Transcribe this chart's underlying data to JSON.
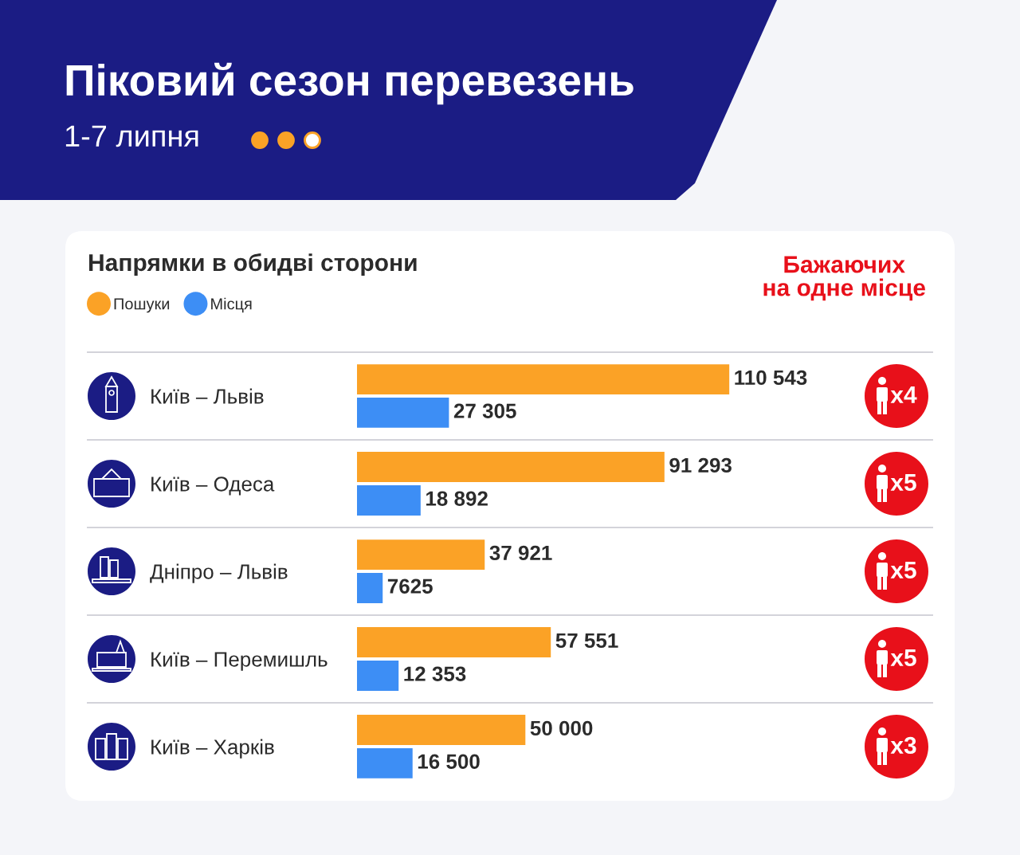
{
  "chart_data": {
    "type": "bar",
    "orientation": "horizontal",
    "title": "Піковий сезон перевезень",
    "subtitle": "1-7 липня",
    "categories": [
      "Київ – Львів",
      "Київ – Одеса",
      "Дніпро – Львів",
      "Київ – Перемишль",
      "Київ – Харків"
    ],
    "series": [
      {
        "name": "Пошуки",
        "color": "#fba226",
        "values": [
          110543,
          91293,
          37921,
          57551,
          50000
        ],
        "value_labels": [
          "110 543",
          "91 293",
          "37 921",
          "57 551",
          "50 000"
        ]
      },
      {
        "name": "Місця",
        "color": "#3d8ef5",
        "values": [
          27305,
          18892,
          7625,
          12353,
          16500
        ],
        "value_labels": [
          "27 305",
          "18 892",
          "7625",
          "12 353",
          "16 500"
        ]
      }
    ],
    "legend": "top left",
    "tick_labels": "y",
    "annotations": [
      "Напрямки в обидві сторони",
      "Бажаючих\nна одне місце",
      "x4",
      "x5",
      "x5",
      "x5",
      "x3"
    ]
  }
}
